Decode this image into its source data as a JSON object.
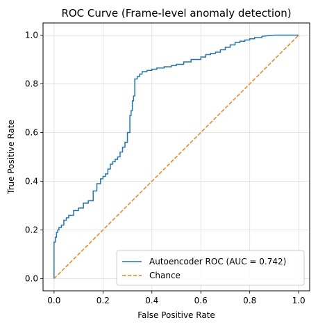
{
  "chart_data": {
    "type": "line",
    "title": "ROC Curve (Frame-level anomaly detection)",
    "xlabel": "False Positive Rate",
    "ylabel": "True Positive Rate",
    "xlim": [
      -0.045,
      1.045
    ],
    "ylim": [
      -0.05,
      1.05
    ],
    "xticks": [
      0.0,
      0.2,
      0.4,
      0.6,
      0.8,
      1.0
    ],
    "yticks": [
      0.0,
      0.2,
      0.4,
      0.6,
      0.8,
      1.0
    ],
    "xtick_labels": [
      "0.0",
      "0.2",
      "0.4",
      "0.6",
      "0.8",
      "1.0"
    ],
    "ytick_labels": [
      "0.0",
      "0.2",
      "0.4",
      "0.6",
      "0.8",
      "1.0"
    ],
    "grid": true,
    "legend_position": "bottom-right",
    "series": [
      {
        "name": "Autoencoder ROC (AUC = 0.742)",
        "color": "#1f77b4",
        "style": "solid",
        "x": [
          0.0,
          0.0,
          0.005,
          0.005,
          0.01,
          0.01,
          0.015,
          0.015,
          0.02,
          0.02,
          0.03,
          0.03,
          0.04,
          0.04,
          0.05,
          0.05,
          0.06,
          0.06,
          0.08,
          0.08,
          0.1,
          0.1,
          0.12,
          0.12,
          0.14,
          0.14,
          0.16,
          0.16,
          0.175,
          0.175,
          0.19,
          0.19,
          0.2,
          0.2,
          0.21,
          0.21,
          0.22,
          0.22,
          0.23,
          0.23,
          0.24,
          0.24,
          0.25,
          0.25,
          0.26,
          0.26,
          0.27,
          0.27,
          0.28,
          0.28,
          0.29,
          0.29,
          0.3,
          0.3,
          0.31,
          0.31,
          0.315,
          0.315,
          0.32,
          0.32,
          0.325,
          0.325,
          0.33,
          0.33,
          0.34,
          0.34,
          0.35,
          0.35,
          0.36,
          0.36,
          0.38,
          0.38,
          0.4,
          0.4,
          0.42,
          0.42,
          0.45,
          0.45,
          0.48,
          0.48,
          0.5,
          0.5,
          0.53,
          0.53,
          0.56,
          0.56,
          0.6,
          0.6,
          0.62,
          0.62,
          0.64,
          0.64,
          0.66,
          0.66,
          0.68,
          0.68,
          0.7,
          0.7,
          0.72,
          0.72,
          0.74,
          0.74,
          0.76,
          0.76,
          0.78,
          0.78,
          0.8,
          0.8,
          0.82,
          0.82,
          0.85,
          0.85,
          0.9,
          1.0
        ],
        "y": [
          0.0,
          0.15,
          0.15,
          0.17,
          0.17,
          0.19,
          0.19,
          0.2,
          0.2,
          0.21,
          0.21,
          0.22,
          0.22,
          0.24,
          0.24,
          0.25,
          0.25,
          0.26,
          0.26,
          0.28,
          0.28,
          0.29,
          0.29,
          0.31,
          0.31,
          0.32,
          0.32,
          0.36,
          0.36,
          0.39,
          0.39,
          0.41,
          0.41,
          0.42,
          0.42,
          0.43,
          0.43,
          0.45,
          0.45,
          0.47,
          0.47,
          0.48,
          0.48,
          0.49,
          0.49,
          0.5,
          0.5,
          0.52,
          0.52,
          0.54,
          0.54,
          0.56,
          0.56,
          0.6,
          0.6,
          0.67,
          0.67,
          0.69,
          0.69,
          0.73,
          0.73,
          0.75,
          0.75,
          0.82,
          0.82,
          0.83,
          0.83,
          0.84,
          0.84,
          0.85,
          0.85,
          0.855,
          0.855,
          0.86,
          0.86,
          0.865,
          0.865,
          0.87,
          0.87,
          0.875,
          0.875,
          0.88,
          0.88,
          0.89,
          0.89,
          0.9,
          0.9,
          0.91,
          0.91,
          0.92,
          0.92,
          0.925,
          0.925,
          0.93,
          0.93,
          0.94,
          0.94,
          0.95,
          0.95,
          0.96,
          0.96,
          0.97,
          0.97,
          0.975,
          0.975,
          0.98,
          0.98,
          0.985,
          0.985,
          0.99,
          0.99,
          0.995,
          1.0,
          1.0
        ]
      },
      {
        "name": "Chance",
        "color": "#ff7f0e",
        "style": "dashed",
        "x": [
          0.0,
          1.0
        ],
        "y": [
          0.0,
          1.0
        ]
      }
    ]
  }
}
